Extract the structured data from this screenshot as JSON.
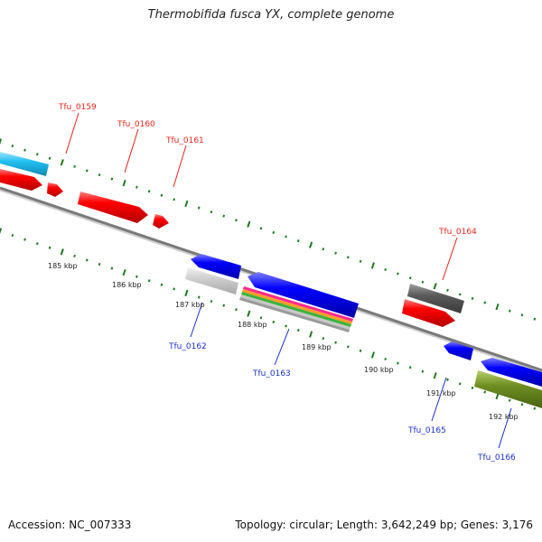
{
  "title": "Thermobifida fusca YX, complete genome",
  "footer": {
    "accession": "Accession: NC_007333",
    "summary": "Topology: circular; Length: 3,642,249 bp; Genes: 3,176"
  },
  "scale_labels": [
    "185 kbp",
    "186 kbp",
    "187 kbp",
    "188 kbp",
    "189 kbp",
    "190 kbp",
    "191 kbp",
    "192 kbp"
  ],
  "genes": {
    "Tfu_0159": "Tfu_0159",
    "Tfu_0160": "Tfu_0160",
    "Tfu_0161": "Tfu_0161",
    "Tfu_0162": "Tfu_0162",
    "Tfu_0163": "Tfu_0163",
    "Tfu_0164": "Tfu_0164",
    "Tfu_0165": "Tfu_0165",
    "Tfu_0166": "Tfu_0166"
  },
  "colors": {
    "forward_strand": "#ff0000",
    "reverse_strand": "#0000ff",
    "label_forward": "#e0261a",
    "label_reverse": "#1a2fc9",
    "tick": "#1e7a1e",
    "backbone": "#808080"
  }
}
